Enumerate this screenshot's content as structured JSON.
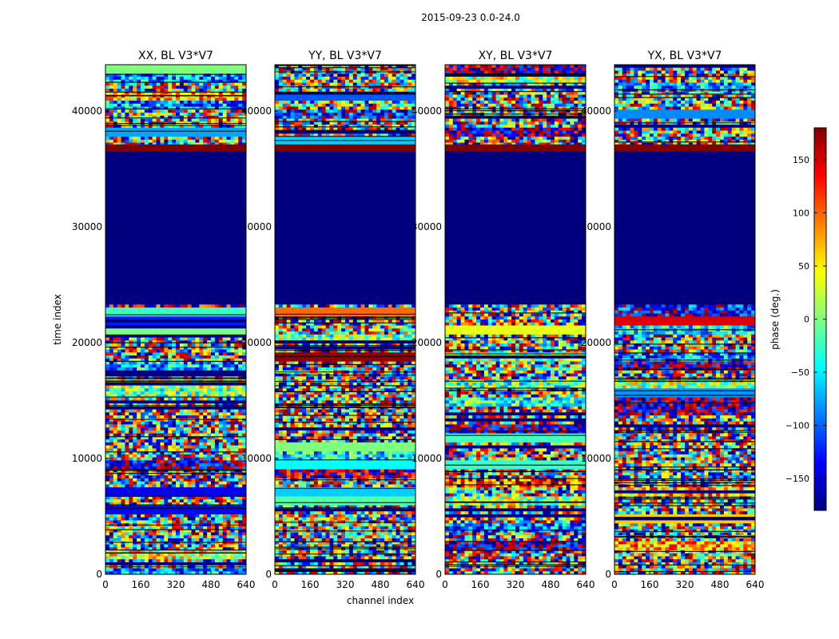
{
  "figure": {
    "suptitle": "2015-09-23 0.0-24.0",
    "xlabel": "channel index",
    "ylabel": "time index"
  },
  "colorbar": {
    "label": "phase (deg.)",
    "range": [
      -180,
      180
    ],
    "ticks": [
      "150",
      "100",
      "50",
      "0",
      "−50",
      "−100",
      "−150"
    ],
    "tick_values": [
      150,
      100,
      50,
      0,
      -50,
      -100,
      -150
    ],
    "colors": [
      "#00007f",
      "#0000ff",
      "#007fff",
      "#00ffff",
      "#7fff7f",
      "#ffff00",
      "#ff7f00",
      "#ff0000",
      "#7f0000"
    ]
  },
  "chart_data": [
    {
      "type": "heatmap",
      "title": "XX, BL V3*V7",
      "xlabel": "channel index",
      "ylabel": "time index",
      "xlim": [
        0,
        640
      ],
      "ylim": [
        0,
        44000
      ],
      "x_ticks": [
        "0",
        "160",
        "320",
        "480",
        "640"
      ],
      "y_ticks": [
        "0",
        "10000",
        "20000",
        "30000",
        "40000"
      ],
      "flagged_range": [
        23500,
        36500
      ],
      "flagged_value": -180
    },
    {
      "type": "heatmap",
      "title": "YY, BL V3*V7",
      "xlabel": "channel index",
      "ylabel": "",
      "xlim": [
        0,
        640
      ],
      "ylim": [
        0,
        44000
      ],
      "x_ticks": [
        "0",
        "160",
        "320",
        "480",
        "640"
      ],
      "y_ticks": [
        "0",
        "10000",
        "20000",
        "30000",
        "40000"
      ],
      "flagged_range": [
        23500,
        36500
      ],
      "flagged_value": -180
    },
    {
      "type": "heatmap",
      "title": "XY, BL V3*V7",
      "xlabel": "",
      "ylabel": "",
      "xlim": [
        0,
        640
      ],
      "ylim": [
        0,
        44000
      ],
      "x_ticks": [
        "0",
        "160",
        "320",
        "480",
        "640"
      ],
      "y_ticks": [
        "0",
        "10000",
        "20000",
        "30000",
        "40000"
      ],
      "flagged_range": [
        23500,
        36500
      ],
      "flagged_value": -180
    },
    {
      "type": "heatmap",
      "title": "YX, BL V3*V7",
      "xlabel": "",
      "ylabel": "",
      "xlim": [
        0,
        640
      ],
      "ylim": [
        0,
        44000
      ],
      "x_ticks": [
        "0",
        "160",
        "320",
        "480",
        "640"
      ],
      "y_ticks": [
        "0",
        "10000",
        "20000",
        "30000",
        "40000"
      ],
      "flagged_range": [
        23500,
        36500
      ],
      "flagged_value": -180
    }
  ]
}
